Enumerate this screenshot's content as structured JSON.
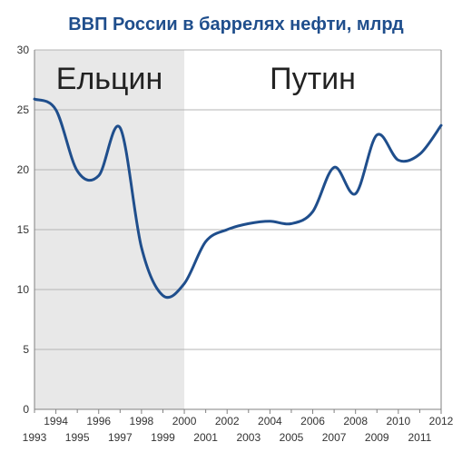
{
  "colors": {
    "title": "#1f4e8c",
    "line": "#1f4e8c",
    "shade": "#e8e8e8",
    "grid": "#b5b5b5",
    "axis": "#808080"
  },
  "chart_data": {
    "type": "line",
    "title": "ВВП России в баррелях нефти, млрд",
    "xlabel": "",
    "ylabel": "",
    "ylim": [
      0,
      30
    ],
    "xlim": [
      1993,
      2012
    ],
    "y_ticks": [
      "0",
      "5",
      "10",
      "15",
      "20",
      "25",
      "30"
    ],
    "x_ticks_upper": [
      "1994",
      "1996",
      "1998",
      "2000",
      "2002",
      "2004",
      "2006",
      "2008",
      "2010",
      "2012"
    ],
    "x_ticks_lower": [
      "1993",
      "1995",
      "1997",
      "1999",
      "2001",
      "2003",
      "2005",
      "2007",
      "2009",
      "2011"
    ],
    "grid": true,
    "regions": [
      {
        "label": "Ельцин",
        "from": 1993,
        "to": 2000,
        "shaded": true
      },
      {
        "label": "Путин",
        "from": 2000,
        "to": 2012,
        "shaded": false
      }
    ],
    "series": [
      {
        "x": [
          1993,
          1994,
          1995,
          1996,
          1997,
          1998,
          1999,
          2000,
          2001,
          2002,
          2003,
          2004,
          2005,
          2006,
          2007,
          2008,
          2009,
          2010,
          2011,
          2012
        ],
        "values": [
          25.9,
          25.0,
          19.9,
          19.5,
          23.5,
          13.5,
          9.5,
          10.5,
          14.0,
          15.0,
          15.5,
          15.7,
          15.5,
          16.5,
          20.2,
          18.0,
          22.9,
          20.8,
          21.3,
          23.7
        ]
      }
    ]
  }
}
